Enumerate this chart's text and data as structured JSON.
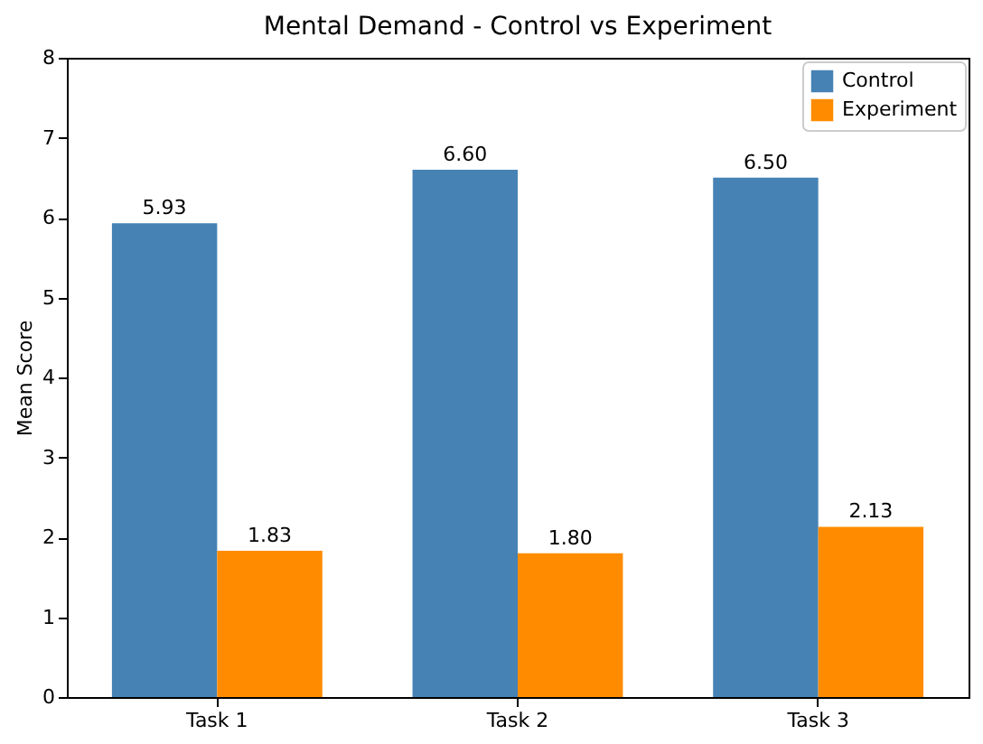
{
  "chart_data": {
    "type": "bar",
    "title": "Mental Demand - Control vs Experiment",
    "ylabel": "Mean Score",
    "categories": [
      "Task 1",
      "Task 2",
      "Task 3"
    ],
    "series": [
      {
        "name": "Control",
        "color": "#4682b4",
        "values": [
          5.93,
          6.6,
          6.5
        ],
        "value_labels": [
          "5.93",
          "6.60",
          "6.50"
        ]
      },
      {
        "name": "Experiment",
        "color": "#ff8c00",
        "values": [
          1.83,
          1.8,
          2.13
        ],
        "value_labels": [
          "1.83",
          "1.80",
          "2.13"
        ]
      }
    ],
    "ylim": [
      0,
      8
    ],
    "yticks": [
      0,
      1,
      2,
      3,
      4,
      5,
      6,
      7,
      8
    ],
    "grid": false,
    "legend": "top right"
  }
}
